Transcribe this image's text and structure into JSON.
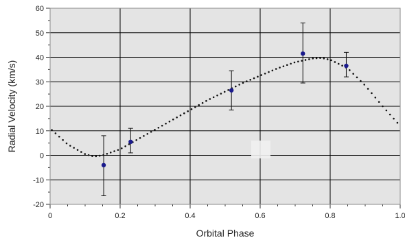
{
  "chart_data": {
    "type": "scatter",
    "xlabel": "Orbital Phase",
    "ylabel": "Radial Velocity (km/s)",
    "xlim": [
      0,
      1.0
    ],
    "ylim": [
      -20,
      60
    ],
    "x_tick_labels": [
      "0",
      "0.2",
      "0.4",
      "0.6",
      "0.8",
      "1.0"
    ],
    "y_tick_labels": [
      "-20",
      "-10",
      "0",
      "10",
      "20",
      "30",
      "40",
      "50",
      "60"
    ],
    "x_ticks": [
      0,
      0.2,
      0.4,
      0.6,
      0.8,
      1.0
    ],
    "y_ticks": [
      -20,
      -10,
      0,
      10,
      20,
      30,
      40,
      50,
      60
    ],
    "grid": true,
    "series": [
      {
        "type": "scatter_with_errorbars",
        "color": "#1a1a8c",
        "points": [
          {
            "x": 0.153,
            "y": -4,
            "yerr_low": -16.5,
            "yerr_high": 8
          },
          {
            "x": 0.23,
            "y": 5.5,
            "yerr_low": 1,
            "yerr_high": 11
          },
          {
            "x": 0.518,
            "y": 26.5,
            "yerr_low": 18.5,
            "yerr_high": 34.5
          },
          {
            "x": 0.722,
            "y": 41.5,
            "yerr_low": 29.5,
            "yerr_high": 54
          },
          {
            "x": 0.846,
            "y": 36.5,
            "yerr_low": 32,
            "yerr_high": 42
          }
        ]
      },
      {
        "type": "fitted_curve",
        "style": "dotted",
        "color": "#111111",
        "x": [
          0.0,
          0.05,
          0.1,
          0.125,
          0.15,
          0.2,
          0.25,
          0.3,
          0.35,
          0.4,
          0.45,
          0.5,
          0.55,
          0.6,
          0.65,
          0.7,
          0.75,
          0.775,
          0.8,
          0.85,
          0.9,
          0.95,
          1.0
        ],
        "y": [
          11,
          4.5,
          0.5,
          -0.5,
          0,
          2.5,
          6.5,
          10.5,
          14.5,
          18.5,
          22.5,
          26,
          29.5,
          32.5,
          35.5,
          38,
          39.5,
          39.7,
          39,
          35.5,
          28.5,
          20,
          12
        ]
      }
    ],
    "colors": {
      "plot_background": "#e4e4e4",
      "grid": "#000000",
      "frame": "#8a8a8a"
    }
  }
}
